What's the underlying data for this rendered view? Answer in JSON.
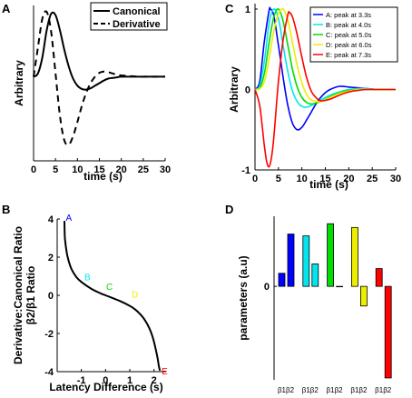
{
  "chart_data": [
    {
      "panel": "A",
      "type": "line",
      "xlabel": "time (s)",
      "ylabel": "Arbitrary",
      "xlim": [
        0,
        30
      ],
      "ylim": [
        -1.3,
        1.1
      ],
      "xticks": [
        0,
        5,
        10,
        15,
        20,
        25,
        30
      ],
      "legend_position": "top-right",
      "series": [
        {
          "name": "Canonical",
          "style": "solid",
          "x": [
            0,
            1,
            2,
            3,
            4,
            5,
            6,
            7,
            8,
            9,
            10,
            11,
            12,
            13,
            14,
            15,
            16,
            17,
            18,
            19,
            20,
            22,
            24,
            26,
            28,
            30
          ],
          "y": [
            0,
            0.05,
            0.3,
            0.72,
            0.97,
            0.95,
            0.72,
            0.42,
            0.16,
            -0.03,
            -0.14,
            -0.19,
            -0.2,
            -0.18,
            -0.14,
            -0.1,
            -0.06,
            -0.03,
            -0.02,
            -0.01,
            0,
            0,
            0,
            0,
            0,
            0
          ]
        },
        {
          "name": "Derivative",
          "style": "dashed",
          "x": [
            0,
            1,
            2,
            3,
            4,
            5,
            6,
            7,
            8,
            9,
            10,
            11,
            12,
            13,
            14,
            15,
            16,
            17,
            18,
            19,
            20,
            22,
            24,
            26,
            28,
            30
          ],
          "y": [
            0,
            0.45,
            0.9,
            1.0,
            0.7,
            0.05,
            -0.6,
            -0.98,
            -1.05,
            -0.92,
            -0.7,
            -0.45,
            -0.25,
            -0.1,
            0,
            0.06,
            0.08,
            0.07,
            0.05,
            0.03,
            0.02,
            0.01,
            0,
            0,
            0,
            0
          ]
        }
      ]
    },
    {
      "panel": "C",
      "type": "line",
      "xlabel": "time (s)",
      "ylabel": "Arbitrary",
      "xlim": [
        0,
        30
      ],
      "ylim": [
        -1,
        1
      ],
      "xticks": [
        0,
        5,
        10,
        15,
        20,
        25,
        30
      ],
      "yticks": [
        -1,
        0,
        1
      ],
      "legend_position": "top-right",
      "series": [
        {
          "name": "A: peak at 3.3s",
          "color": "#0000ff",
          "x": [
            0,
            1,
            2,
            3,
            3.3,
            4,
            5,
            6,
            7,
            8,
            9,
            10,
            11,
            12,
            13,
            14,
            15,
            16,
            18,
            20,
            22,
            24,
            26,
            28,
            30
          ],
          "y": [
            0,
            0.1,
            0.6,
            0.98,
            1.0,
            0.92,
            0.55,
            0.15,
            -0.2,
            -0.42,
            -0.5,
            -0.47,
            -0.38,
            -0.28,
            -0.18,
            -0.1,
            -0.04,
            0,
            0.04,
            0.03,
            0.02,
            0.01,
            0,
            0,
            0
          ]
        },
        {
          "name": "B: peak at 4.0s",
          "color": "#00e5ee",
          "x": [
            0,
            1,
            2,
            3,
            4,
            5,
            6,
            7,
            8,
            9,
            10,
            11,
            12,
            14,
            16,
            18,
            20,
            22,
            24,
            26,
            28,
            30
          ],
          "y": [
            0,
            0.05,
            0.35,
            0.82,
            1.0,
            0.88,
            0.55,
            0.22,
            -0.02,
            -0.15,
            -0.21,
            -0.22,
            -0.2,
            -0.13,
            -0.07,
            -0.03,
            0,
            0.01,
            0.01,
            0,
            0,
            0
          ]
        },
        {
          "name": "C: peak at 5.0s",
          "color": "#00dd00",
          "x": [
            0,
            1,
            2,
            3,
            4,
            5,
            6,
            7,
            8,
            9,
            10,
            11,
            12,
            14,
            16,
            18,
            20,
            22,
            24,
            26,
            28,
            30
          ],
          "y": [
            0,
            0.02,
            0.2,
            0.58,
            0.9,
            1.0,
            0.85,
            0.55,
            0.25,
            0.03,
            -0.1,
            -0.16,
            -0.18,
            -0.15,
            -0.09,
            -0.04,
            -0.01,
            0,
            0,
            0,
            0,
            0
          ]
        },
        {
          "name": "D: peak at 6.0s",
          "color": "#eeee00",
          "x": [
            0,
            1,
            2,
            3,
            4,
            5,
            6,
            7,
            8,
            9,
            10,
            11,
            12,
            14,
            16,
            18,
            20,
            22,
            24,
            26,
            28,
            30
          ],
          "y": [
            0,
            0.01,
            0.1,
            0.38,
            0.72,
            0.94,
            1.0,
            0.86,
            0.58,
            0.3,
            0.08,
            -0.06,
            -0.13,
            -0.15,
            -0.1,
            -0.05,
            -0.02,
            0,
            0,
            0,
            0,
            0
          ]
        },
        {
          "name": "E: peak at 7.3s",
          "color": "#ff0000",
          "x": [
            0,
            1,
            2,
            2.5,
            3,
            3.5,
            4,
            5,
            6,
            7,
            7.3,
            8,
            9,
            10,
            11,
            12,
            13,
            14,
            16,
            18,
            20,
            22,
            24,
            26,
            28,
            30
          ],
          "y": [
            0,
            -0.2,
            -0.7,
            -0.9,
            -0.96,
            -0.85,
            -0.6,
            0.1,
            0.62,
            0.93,
            0.96,
            0.9,
            0.68,
            0.4,
            0.15,
            -0.02,
            -0.1,
            -0.14,
            -0.12,
            -0.07,
            -0.03,
            -0.01,
            0,
            0,
            0,
            0
          ]
        }
      ]
    },
    {
      "panel": "B",
      "type": "line",
      "xlabel": "Latency Difference (s)",
      "ylabel": "Derivative:Canonical Ratio",
      "ylabel2": "β2/β1 Ratio",
      "xlim": [
        -2,
        2.5
      ],
      "ylim": [
        -4,
        4
      ],
      "xticks": [
        -1,
        0,
        1,
        2
      ],
      "yticks": [
        -4,
        -2,
        0,
        2,
        4
      ],
      "series": [
        {
          "name": "ratio",
          "color": "#000000",
          "x": [
            -1.7,
            -1.68,
            -1.6,
            -1.5,
            -1.4,
            -1.2,
            -1.0,
            -0.6,
            -0.2,
            0,
            0.2,
            0.6,
            1.0,
            1.2,
            1.4,
            1.6,
            1.8,
            1.95,
            2.05,
            2.15,
            2.2,
            2.25
          ],
          "y": [
            3.9,
            3.0,
            2.2,
            1.7,
            1.35,
            0.95,
            0.7,
            0.35,
            0.1,
            0,
            -0.1,
            -0.3,
            -0.55,
            -0.72,
            -0.95,
            -1.25,
            -1.7,
            -2.2,
            -2.7,
            -3.3,
            -3.7,
            -3.95
          ]
        }
      ],
      "points": [
        {
          "label": "A",
          "x": -1.68,
          "y": 3.95,
          "color": "#0000ff"
        },
        {
          "label": "B",
          "x": -0.95,
          "y": 0.65,
          "color": "#00e5ee"
        },
        {
          "label": "C",
          "x": -0.05,
          "y": 0.15,
          "color": "#00dd00"
        },
        {
          "label": "D",
          "x": 1.0,
          "y": -0.25,
          "color": "#eeee00"
        },
        {
          "label": "E",
          "x": 2.28,
          "y": -3.95,
          "color": "#ff0000"
        }
      ]
    },
    {
      "panel": "D",
      "type": "bar",
      "ylabel": "parameters (a.u)",
      "ytick_zero": "0",
      "ylim": [
        -1.0,
        0.75
      ],
      "group_labels": [
        "β1β2",
        "β1β2",
        "β1β2",
        "β1β2",
        "β1β2"
      ],
      "groups": [
        {
          "color": "#0000ff",
          "values": [
            0.14,
            0.56
          ]
        },
        {
          "color": "#00e5ee",
          "values": [
            0.54,
            0.24
          ]
        },
        {
          "color": "#00dd00",
          "values": [
            0.67,
            0.0
          ]
        },
        {
          "color": "#eeee00",
          "values": [
            0.63,
            -0.21
          ]
        },
        {
          "color": "#ff0000",
          "values": [
            0.19,
            -0.98
          ]
        }
      ]
    }
  ],
  "labels": {
    "panel_a": "A",
    "panel_b": "B",
    "panel_c": "C",
    "panel_d": "D"
  }
}
